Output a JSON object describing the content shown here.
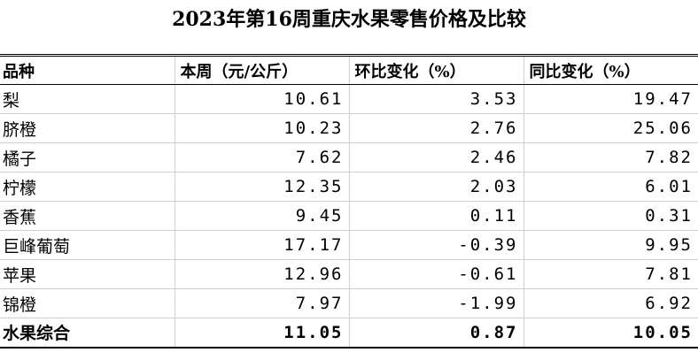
{
  "header": {
    "title": "2023年第16周重庆水果零售价格及比较"
  },
  "table": {
    "columns": [
      "品种",
      "本周（元/公斤）",
      "环比变化（%）",
      "同比变化（%）"
    ],
    "rows": [
      [
        "梨",
        "10.61",
        "3.53",
        "19.47"
      ],
      [
        "脐橙",
        "10.23",
        "2.76",
        "25.06"
      ],
      [
        "橘子",
        "7.62",
        "2.46",
        "7.82"
      ],
      [
        "柠檬",
        "12.35",
        "2.03",
        "6.01"
      ],
      [
        "香蕉",
        "9.45",
        "0.11",
        "0.31"
      ],
      [
        "巨峰葡萄",
        "17.17",
        "-0.39",
        "9.95"
      ],
      [
        "苹果",
        "12.96",
        "-0.61",
        "7.81"
      ],
      [
        "锦橙",
        "7.97",
        "-1.99",
        "6.92"
      ]
    ],
    "total": [
      "水果综合",
      "11.05",
      "0.87",
      "10.05"
    ]
  }
}
